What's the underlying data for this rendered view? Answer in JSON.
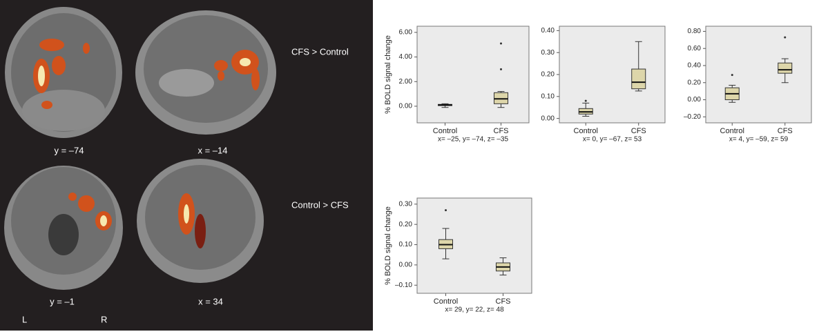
{
  "figure": {
    "labels": {
      "top_left": "y = –74",
      "top_right": "x = –14",
      "top_contrast": "CFS > Control",
      "bottom_left": "y = –1",
      "bottom_right": "x = 34",
      "bottom_contrast": "Control > CFS",
      "left": "L",
      "right": "R"
    }
  },
  "chart_data": [
    {
      "type": "box",
      "ylabel": "% BOLD signal change",
      "xlabel": "x= –25, y= –74, z= –35",
      "categories": [
        "Control",
        "CFS"
      ],
      "boxes": [
        {
          "min": -0.1,
          "q1": 0.05,
          "median": 0.1,
          "q3": 0.15,
          "max": 0.2,
          "outliers": []
        },
        {
          "min": -0.1,
          "q1": 0.2,
          "median": 0.6,
          "q3": 1.1,
          "max": 1.2,
          "outliers": [
            3.0,
            5.1
          ]
        }
      ],
      "box_color": "#ddd6aa",
      "ylim": [
        -1.35,
        6.5
      ],
      "yticks": [
        {
          "value": 0,
          "label": "0.00"
        },
        {
          "value": 2,
          "label": "2.00"
        },
        {
          "value": 4,
          "label": "4.00"
        },
        {
          "value": 6,
          "label": "6.00"
        }
      ]
    },
    {
      "type": "box",
      "xlabel": "x= 0, y= –67, z= 53",
      "categories": [
        "Control",
        "CFS"
      ],
      "boxes": [
        {
          "min": 0.01,
          "q1": 0.02,
          "median": 0.03,
          "q3": 0.045,
          "max": 0.07,
          "outliers": [
            0.08
          ]
        },
        {
          "min": 0.125,
          "q1": 0.135,
          "median": 0.165,
          "q3": 0.225,
          "max": 0.35,
          "outliers": []
        }
      ],
      "box_color": "#ddd6aa",
      "ylim": [
        -0.02,
        0.42
      ],
      "yticks": [
        {
          "value": 0,
          "label": "0.00"
        },
        {
          "value": 0.1,
          "label": "0.10"
        },
        {
          "value": 0.2,
          "label": "0.20"
        },
        {
          "value": 0.3,
          "label": "0.30"
        },
        {
          "value": 0.4,
          "label": "0.40"
        }
      ]
    },
    {
      "type": "box",
      "xlabel": "x= 4, y= –59, z= 59",
      "categories": [
        "Control",
        "CFS"
      ],
      "boxes": [
        {
          "min": -0.03,
          "q1": 0.0,
          "median": 0.07,
          "q3": 0.14,
          "max": 0.17,
          "outliers": [
            0.29
          ]
        },
        {
          "min": 0.2,
          "q1": 0.31,
          "median": 0.35,
          "q3": 0.43,
          "max": 0.48,
          "outliers": [
            0.73
          ]
        }
      ],
      "box_color": "#ddd6aa",
      "ylim": [
        -0.27,
        0.86
      ],
      "yticks": [
        {
          "value": -0.2,
          "label": "–0.20"
        },
        {
          "value": 0,
          "label": "0.00"
        },
        {
          "value": 0.2,
          "label": "0.20"
        },
        {
          "value": 0.4,
          "label": "0.40"
        },
        {
          "value": 0.6,
          "label": "0.60"
        },
        {
          "value": 0.8,
          "label": "0.80"
        }
      ]
    },
    {
      "type": "box",
      "ylabel": "% BOLD signal change",
      "xlabel": "x= 29, y= 22, z= 48",
      "categories": [
        "Control",
        "CFS"
      ],
      "boxes": [
        {
          "min": 0.03,
          "q1": 0.08,
          "median": 0.1,
          "q3": 0.125,
          "max": 0.18,
          "outliers": [
            0.27
          ]
        },
        {
          "min": -0.05,
          "q1": -0.03,
          "median": -0.01,
          "q3": 0.01,
          "max": 0.035,
          "outliers": []
        }
      ],
      "box_color": "#ddd6aa",
      "ylim": [
        -0.14,
        0.33
      ],
      "yticks": [
        {
          "value": -0.1,
          "label": "–0.10"
        },
        {
          "value": 0,
          "label": "0.00"
        },
        {
          "value": 0.1,
          "label": "0.10"
        },
        {
          "value": 0.2,
          "label": "0.20"
        },
        {
          "value": 0.3,
          "label": "0.30"
        }
      ]
    }
  ]
}
